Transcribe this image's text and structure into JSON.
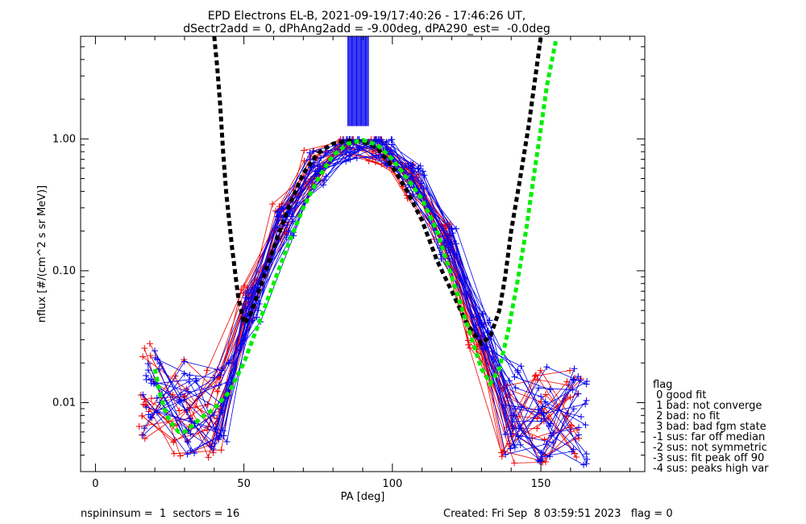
{
  "title_lines": [
    "EPD Electrons EL-B, 2021-09-19/17:40:26 - 17:46:26 UT,",
    "dSectr2add = 0, dPhAng2add = -9.00deg, dPA290_est=  -0.0deg"
  ],
  "footer": {
    "left": "nspininsum =  1  sectors = 16",
    "right": "Created: Fri Sep  8 03:59:51 2023   flag = 0"
  },
  "legend": {
    "title": "flag",
    "items": [
      " 0 good fit",
      " 1 bad: not converge",
      " 2 bad: no fit",
      " 3 bad: bad fgm state",
      "-1 sus: far off median",
      "-2 sus: not symmetric",
      "-3 sus: fit peak off 90",
      "-4 sus: peaks high var"
    ]
  },
  "chart_data": {
    "type": "line",
    "title": "EPD Electrons EL-B, 2021-09-19/17:40:26 - 17:46:26 UT,",
    "subtitle": "dSectr2add = 0, dPhAng2add = -9.00deg, dPA290_est=  -0.0deg",
    "xlabel": "PA [deg]",
    "ylabel": "nflux [#/(cm^2 s sr MeV)]",
    "xlim": [
      -5,
      185
    ],
    "ylim": [
      0.003,
      6.0
    ],
    "yscale": "log",
    "xticks": [
      0,
      50,
      100,
      150
    ],
    "xticklabels": [
      "0",
      "50",
      "100",
      "150"
    ],
    "yticks": [
      0.01,
      0.1,
      1.0
    ],
    "yticklabels": [
      "0.01",
      "0.10",
      "1.00"
    ],
    "series": [
      {
        "color": "#000000",
        "style": "dashed-thick",
        "x": [
          40,
          41,
          42,
          43,
          44,
          46,
          48,
          50,
          52,
          55,
          60,
          65,
          70,
          75,
          80,
          85,
          90,
          95,
          100,
          105,
          110,
          115,
          120,
          125,
          130,
          133,
          136,
          138,
          140,
          143,
          146,
          148,
          150
        ],
        "y": [
          6.0,
          3.5,
          1.8,
          0.8,
          0.4,
          0.15,
          0.065,
          0.04,
          0.045,
          0.07,
          0.15,
          0.3,
          0.55,
          0.78,
          0.92,
          0.97,
          0.95,
          0.85,
          0.62,
          0.4,
          0.24,
          0.12,
          0.07,
          0.04,
          0.028,
          0.032,
          0.05,
          0.09,
          0.2,
          0.5,
          1.3,
          2.8,
          6.0
        ]
      },
      {
        "color": "#00ee00",
        "style": "dashed-thick",
        "x": [
          20,
          22,
          24,
          26,
          28,
          30,
          33,
          36,
          40,
          45,
          50,
          55,
          60,
          65,
          70,
          75,
          80,
          85,
          90,
          95,
          100,
          105,
          110,
          115,
          120,
          125,
          130,
          133,
          136,
          139,
          142,
          145,
          148,
          150,
          152,
          155
        ],
        "y": [
          0.018,
          0.011,
          0.008,
          0.0068,
          0.006,
          0.006,
          0.0068,
          0.0078,
          0.009,
          0.012,
          0.02,
          0.04,
          0.08,
          0.16,
          0.3,
          0.5,
          0.75,
          0.92,
          0.98,
          0.9,
          0.7,
          0.5,
          0.35,
          0.2,
          0.09,
          0.04,
          0.018,
          0.014,
          0.018,
          0.035,
          0.08,
          0.2,
          0.6,
          1.2,
          2.5,
          5.5
        ]
      }
    ]
  }
}
